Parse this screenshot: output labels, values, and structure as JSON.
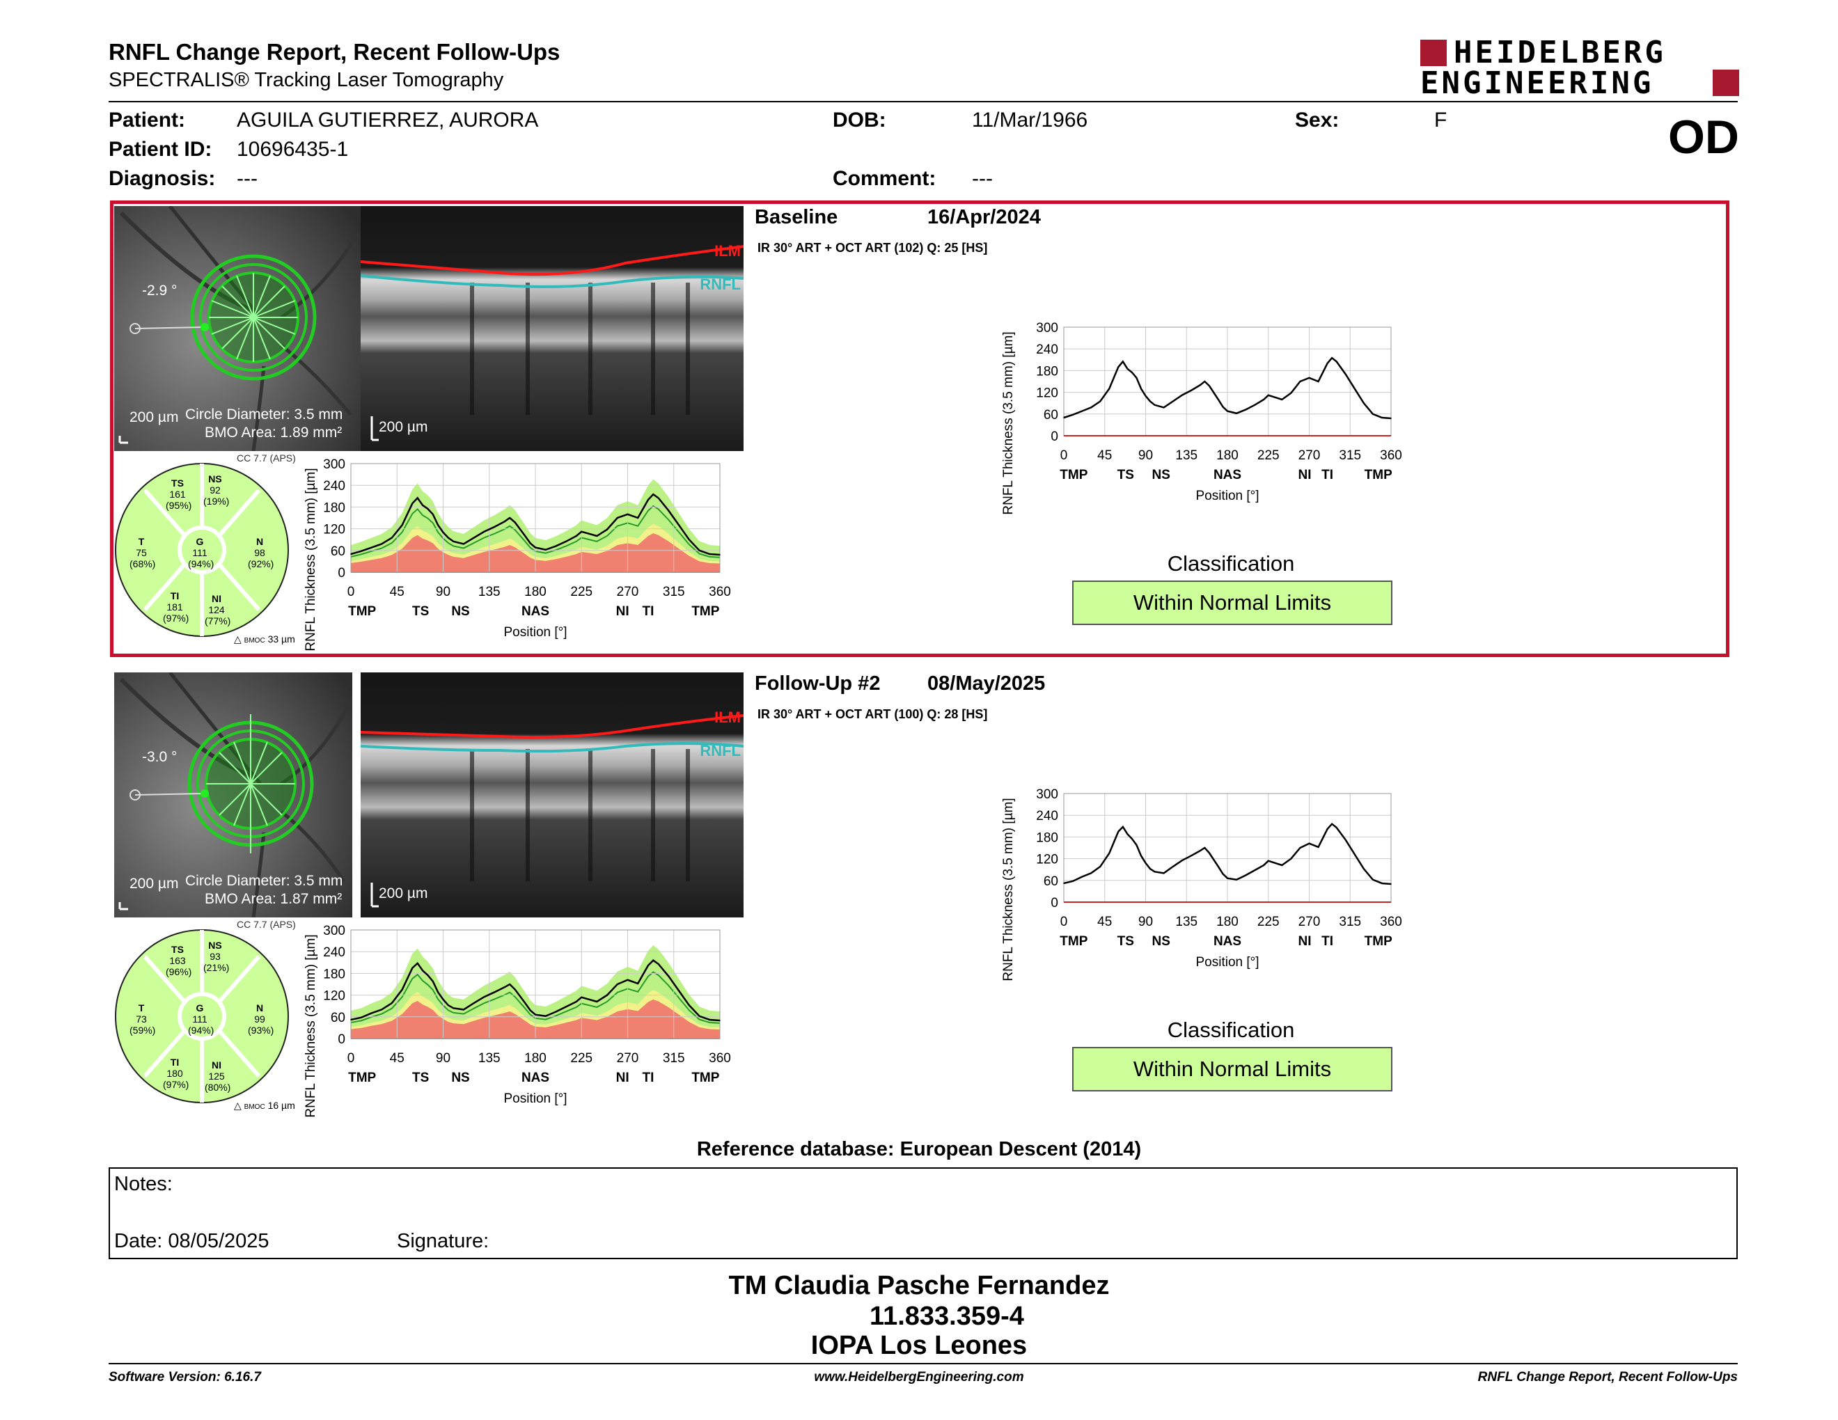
{
  "header": {
    "title": "RNFL Change Report, Recent Follow-Ups",
    "subtitle": "SPECTRALIS® Tracking Laser Tomography",
    "logo_line1": "HEIDELBERG",
    "logo_line2": "ENGINEERING",
    "eye": "OD"
  },
  "patient": {
    "patient_label": "Patient:",
    "patient_value": "AGUILA GUTIERREZ, AURORA",
    "dob_label": "DOB:",
    "dob_value": "11/Mar/1966",
    "sex_label": "Sex:",
    "sex_value": "F",
    "id_label": "Patient ID:",
    "id_value": "10696435-1",
    "diag_label": "Diagnosis:",
    "diag_value": "---",
    "comment_label": "Comment:",
    "comment_value": "---"
  },
  "exams": [
    {
      "name": "Baseline",
      "date": "16/Apr/2024",
      "scan_info": "IR 30° ART + OCT ART (102) Q: 25 [HS]",
      "angle": "-2.9 °",
      "scale_ir": "200 µm",
      "circle_diameter": "Circle Diameter: 3.5 mm",
      "bmo_area": "BMO Area: 1.89 mm²",
      "scale_oct": "200 µm",
      "ilm": "ILM",
      "rnfl": "RNFL",
      "cc": "CC 7.7 (APS)",
      "bmoc": "33 µm",
      "sectors": {
        "TS": {
          "val": "161",
          "pct": "(95%)"
        },
        "NS": {
          "val": "92",
          "pct": "(19%)"
        },
        "T": {
          "val": "75",
          "pct": "(68%)"
        },
        "G": {
          "val": "111",
          "pct": "(94%)"
        },
        "N": {
          "val": "98",
          "pct": "(92%)"
        },
        "TI": {
          "val": "181",
          "pct": "(97%)"
        },
        "NI": {
          "val": "124",
          "pct": "(77%)"
        }
      },
      "classification_label": "Classification",
      "classification": "Within Normal Limits"
    },
    {
      "name": "Follow-Up #2",
      "date": "08/May/2025",
      "scan_info": "IR 30° ART + OCT ART (100) Q: 28 [HS]",
      "angle": "-3.0 °",
      "scale_ir": "200 µm",
      "circle_diameter": "Circle Diameter: 3.5 mm",
      "bmo_area": "BMO Area: 1.87 mm²",
      "scale_oct": "200 µm",
      "ilm": "ILM",
      "rnfl": "RNFL",
      "cc": "CC 7.7 (APS)",
      "bmoc": "16 µm",
      "sectors": {
        "TS": {
          "val": "163",
          "pct": "(96%)"
        },
        "NS": {
          "val": "93",
          "pct": "(21%)"
        },
        "T": {
          "val": "73",
          "pct": "(59%)"
        },
        "G": {
          "val": "111",
          "pct": "(94%)"
        },
        "N": {
          "val": "99",
          "pct": "(93%)"
        },
        "TI": {
          "val": "180",
          "pct": "(97%)"
        },
        "NI": {
          "val": "125",
          "pct": "(80%)"
        }
      },
      "classification_label": "Classification",
      "classification": "Within Normal Limits"
    }
  ],
  "chart_data": [
    {
      "type": "line",
      "title": "",
      "ylabel": "RNFL Thickness (3.5 mm) [µm]",
      "xlabel": "Position [°]",
      "xlim": [
        0,
        360
      ],
      "ylim": [
        0,
        300
      ],
      "x_ticks": [
        "0",
        "45",
        "90",
        "135",
        "180",
        "225",
        "270",
        "315",
        "360"
      ],
      "y_ticks": [
        "0",
        "60",
        "120",
        "180",
        "240",
        "300"
      ],
      "sector_labels": [
        "TMP",
        "TS",
        "NS",
        "NAS",
        "NI",
        "TI",
        "TMP"
      ],
      "x": [
        0,
        10,
        20,
        30,
        40,
        50,
        60,
        65,
        70,
        75,
        80,
        85,
        90,
        95,
        100,
        110,
        120,
        130,
        140,
        150,
        155,
        160,
        170,
        175,
        180,
        190,
        200,
        210,
        220,
        225,
        230,
        240,
        250,
        260,
        270,
        280,
        290,
        295,
        300,
        310,
        320,
        330,
        340,
        350,
        360
      ],
      "series": [
        {
          "values": [
            50,
            58,
            68,
            78,
            95,
            130,
            190,
            205,
            185,
            175,
            160,
            130,
            110,
            95,
            85,
            78,
            95,
            112,
            125,
            140,
            150,
            138,
            100,
            80,
            68,
            62,
            72,
            85,
            100,
            112,
            108,
            100,
            118,
            150,
            160,
            150,
            200,
            215,
            205,
            170,
            130,
            90,
            60,
            50,
            48
          ]
        }
      ]
    },
    {
      "type": "line",
      "title": "",
      "ylabel": "RNFL Thickness (3.5 mm) [µm]",
      "xlabel": "Position [°]",
      "xlim": [
        0,
        360
      ],
      "ylim": [
        0,
        300
      ],
      "x_ticks": [
        "0",
        "45",
        "90",
        "135",
        "180",
        "225",
        "270",
        "315",
        "360"
      ],
      "y_ticks": [
        "0",
        "60",
        "120",
        "180",
        "240",
        "300"
      ],
      "sector_labels": [
        "TMP",
        "TS",
        "NS",
        "NAS",
        "NI",
        "TI",
        "TMP"
      ],
      "x": [
        0,
        10,
        20,
        30,
        40,
        50,
        60,
        65,
        70,
        75,
        80,
        85,
        90,
        95,
        100,
        110,
        120,
        130,
        140,
        150,
        155,
        160,
        170,
        175,
        180,
        190,
        200,
        210,
        220,
        225,
        230,
        240,
        250,
        260,
        270,
        280,
        290,
        295,
        300,
        310,
        320,
        330,
        340,
        350,
        360
      ],
      "series": [
        {
          "values": [
            52,
            58,
            70,
            80,
            98,
            135,
            195,
            208,
            188,
            175,
            158,
            128,
            108,
            92,
            84,
            80,
            98,
            115,
            128,
            142,
            150,
            136,
            98,
            78,
            66,
            62,
            74,
            88,
            102,
            114,
            110,
            102,
            120,
            150,
            162,
            152,
            202,
            216,
            206,
            172,
            132,
            92,
            62,
            52,
            50
          ]
        }
      ]
    }
  ],
  "ref_db": "Reference database: European Descent (2014)",
  "notes": {
    "notes_label": "Notes:",
    "date_label": "Date: 08/05/2025",
    "signature_label": "Signature:"
  },
  "stamp": {
    "line1": "TM Claudia Pasche Fernandez",
    "line2": "11.833.359-4",
    "line3": "IOPA Los Leones"
  },
  "footer": {
    "version": "Software Version: 6.16.7",
    "url": "www.HeidelbergEngineering.com",
    "report": "RNFL Change Report, Recent Follow-Ups"
  },
  "colors": {
    "frame_red": "#c8102e",
    "ilm_red": "#e00000",
    "rnfl_teal": "#33aaaa",
    "normal_green": "#ccff99",
    "band_green": "#aaee66",
    "band_yellow": "#f2f28a",
    "band_red": "#f08070",
    "circle_green": "#22cc22"
  }
}
